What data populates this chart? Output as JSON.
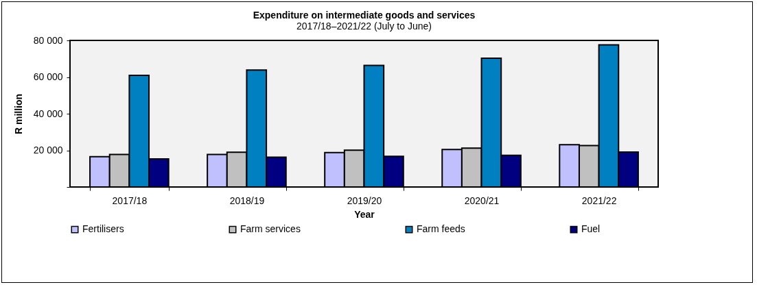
{
  "chart_data": {
    "type": "bar",
    "title": "Expenditure on  intermediate goods and services",
    "subtitle": "2017/18–2021/22 (July to June)",
    "xlabel": "Year",
    "ylabel": "R million",
    "categories": [
      "2017/18",
      "2018/19",
      "2019/20",
      "2020/21",
      "2021/22"
    ],
    "series": [
      {
        "name": "Fertilisers",
        "color": "#c0c0ff",
        "values": [
          16500,
          17800,
          18800,
          20500,
          23100
        ]
      },
      {
        "name": "Farm services",
        "color": "#c0c0c0",
        "values": [
          17800,
          19000,
          20100,
          21200,
          22600
        ]
      },
      {
        "name": "Farm feeds",
        "color": "#0080c0",
        "values": [
          60900,
          63800,
          66400,
          70300,
          77600
        ]
      },
      {
        "name": "Fuel",
        "color": "#000080",
        "values": [
          15300,
          16300,
          16700,
          17300,
          19100
        ]
      }
    ],
    "ylim": [
      0,
      80000
    ],
    "yticks": [
      {
        "value": 0,
        "label": null
      },
      {
        "value": 20000,
        "label": "20 000"
      },
      {
        "value": 40000,
        "label": "40 000"
      },
      {
        "value": 60000,
        "label": "60 000"
      },
      {
        "value": 80000,
        "label": "80 000"
      }
    ],
    "grid": false,
    "legend": "bottom"
  }
}
